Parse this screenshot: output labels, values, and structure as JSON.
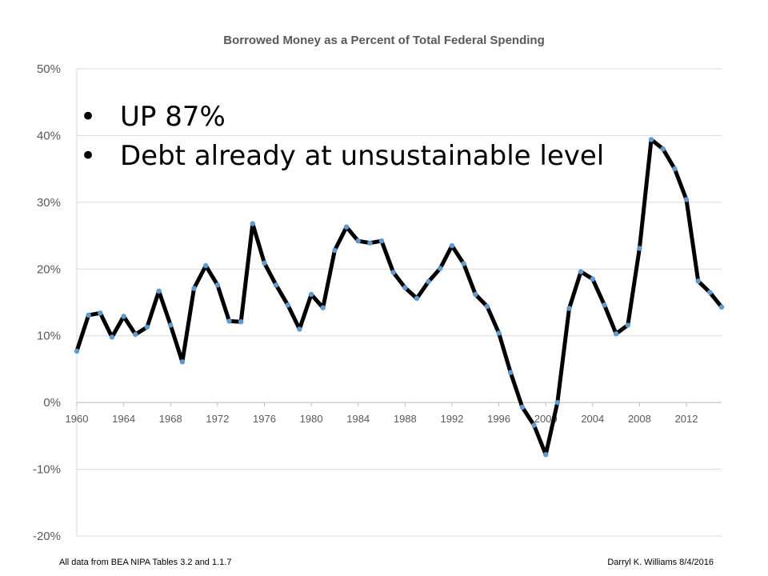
{
  "chart_data": {
    "type": "line",
    "title": "Borrowed Money as a Percent of Total Federal Spending",
    "xlabel": "",
    "ylabel": "",
    "xlim": [
      1960,
      2015
    ],
    "ylim": [
      -20,
      50
    ],
    "y_tick_labels": [
      "50%",
      "40%",
      "30%",
      "20%",
      "10%",
      "0%",
      "-10%",
      "-20%"
    ],
    "y_tick_values": [
      50,
      40,
      30,
      20,
      10,
      0,
      -10,
      -20
    ],
    "x_tick_labels": [
      "1960",
      "1964",
      "1968",
      "1972",
      "1976",
      "1980",
      "1984",
      "1988",
      "1992",
      "1996",
      "2000",
      "2004",
      "2008",
      "2012"
    ],
    "x_tick_values": [
      1960,
      1964,
      1968,
      1972,
      1976,
      1980,
      1984,
      1988,
      1992,
      1996,
      2000,
      2004,
      2008,
      2012
    ],
    "grid": "horizontal",
    "line_color": "#000000",
    "marker_color": "#5B9BD5",
    "series": [
      {
        "x": [
          1960,
          1961,
          1962,
          1963,
          1964,
          1965,
          1966,
          1967,
          1968,
          1969,
          1970,
          1971,
          1972,
          1973,
          1974,
          1975,
          1976,
          1977,
          1978,
          1979,
          1980,
          1981,
          1982,
          1983,
          1984,
          1985,
          1986,
          1987,
          1988,
          1989,
          1990,
          1991,
          1992,
          1993,
          1994,
          1995,
          1996,
          1997,
          1998,
          1999,
          2000,
          2001,
          2002,
          2003,
          2004,
          2005,
          2006,
          2007,
          2008,
          2009,
          2010,
          2011,
          2012,
          2013,
          2014,
          2015
        ],
        "values": [
          7.7,
          13.1,
          13.4,
          9.8,
          12.9,
          10.2,
          11.3,
          16.7,
          11.6,
          6.1,
          17.1,
          20.5,
          17.6,
          12.2,
          12.1,
          26.8,
          20.9,
          17.6,
          14.6,
          11.0,
          16.2,
          14.2,
          22.8,
          26.3,
          24.2,
          23.9,
          24.2,
          19.5,
          17.2,
          15.6,
          18.1,
          20.1,
          23.5,
          20.8,
          16.2,
          14.4,
          10.4,
          4.5,
          -0.7,
          -3.4,
          -7.8,
          0.0,
          14.1,
          19.6,
          18.5,
          14.6,
          10.3,
          11.6,
          23.1,
          39.4,
          38.0,
          35.0,
          30.4,
          18.2,
          16.5,
          14.3
        ]
      }
    ]
  },
  "bullets": [
    "UP 87%",
    "Debt already at unsustainable level"
  ],
  "bullet_symbol": "•",
  "footer": {
    "source": "All data from BEA NIPA Tables 3.2 and 1.1.7",
    "author": "Darryl K. Williams 8/4/2016"
  }
}
